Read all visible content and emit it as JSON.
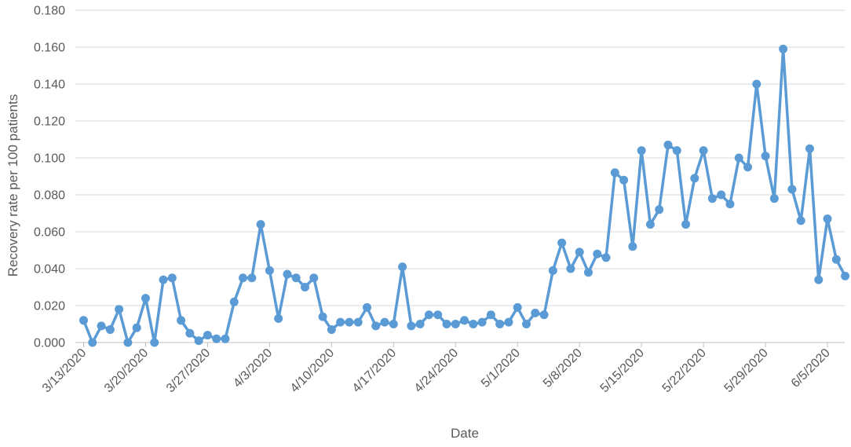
{
  "chart_data": {
    "type": "line",
    "title": "",
    "xlabel": "Date",
    "ylabel": "Recovery rate per 100 patients",
    "ylim": [
      0,
      0.18
    ],
    "y_ticks": [
      "0.000",
      "0.020",
      "0.040",
      "0.060",
      "0.080",
      "0.100",
      "0.120",
      "0.140",
      "0.160",
      "0.180"
    ],
    "x_ticks": [
      "3/13/2020",
      "3/20/2020",
      "3/27/2020",
      "4/3/2020",
      "4/10/2020",
      "4/17/2020",
      "4/24/2020",
      "5/1/2020",
      "5/8/2020",
      "5/15/2020",
      "5/22/2020",
      "5/29/2020",
      "6/5/2020"
    ],
    "grid": true,
    "legend": "none",
    "line_color": "#5B9BD5",
    "series": [
      {
        "x": [
          "3/13/2020",
          "3/14/2020",
          "3/15/2020",
          "3/16/2020",
          "3/17/2020",
          "3/18/2020",
          "3/19/2020",
          "3/20/2020",
          "3/21/2020",
          "3/22/2020",
          "3/23/2020",
          "3/24/2020",
          "3/25/2020",
          "3/26/2020",
          "3/27/2020",
          "3/28/2020",
          "3/29/2020",
          "3/30/2020",
          "3/31/2020",
          "4/1/2020",
          "4/2/2020",
          "4/3/2020",
          "4/4/2020",
          "4/5/2020",
          "4/6/2020",
          "4/7/2020",
          "4/8/2020",
          "4/9/2020",
          "4/10/2020",
          "4/11/2020",
          "4/12/2020",
          "4/13/2020",
          "4/14/2020",
          "4/15/2020",
          "4/16/2020",
          "4/17/2020",
          "4/18/2020",
          "4/19/2020",
          "4/20/2020",
          "4/21/2020",
          "4/22/2020",
          "4/23/2020",
          "4/24/2020",
          "4/25/2020",
          "4/26/2020",
          "4/27/2020",
          "4/28/2020",
          "4/29/2020",
          "4/30/2020",
          "5/1/2020",
          "5/2/2020",
          "5/3/2020",
          "5/4/2020",
          "5/5/2020",
          "5/6/2020",
          "5/7/2020",
          "5/8/2020",
          "5/9/2020",
          "5/10/2020",
          "5/11/2020",
          "5/12/2020",
          "5/13/2020",
          "5/14/2020",
          "5/15/2020",
          "5/16/2020",
          "5/17/2020",
          "5/18/2020",
          "5/19/2020",
          "5/20/2020",
          "5/21/2020",
          "5/22/2020",
          "5/23/2020",
          "5/24/2020",
          "5/25/2020",
          "5/26/2020",
          "5/27/2020",
          "5/28/2020",
          "5/29/2020",
          "5/30/2020",
          "5/31/2020",
          "6/1/2020",
          "6/2/2020",
          "6/3/2020",
          "6/4/2020",
          "6/5/2020",
          "6/6/2020",
          "6/7/2020"
        ],
        "values": [
          0.012,
          0.0,
          0.009,
          0.007,
          0.018,
          0.0,
          0.008,
          0.024,
          0.0,
          0.034,
          0.035,
          0.012,
          0.005,
          0.001,
          0.004,
          0.002,
          0.002,
          0.022,
          0.035,
          0.035,
          0.064,
          0.039,
          0.013,
          0.037,
          0.035,
          0.03,
          0.035,
          0.014,
          0.007,
          0.011,
          0.011,
          0.011,
          0.019,
          0.009,
          0.011,
          0.01,
          0.041,
          0.009,
          0.01,
          0.015,
          0.015,
          0.01,
          0.01,
          0.012,
          0.01,
          0.011,
          0.015,
          0.01,
          0.011,
          0.019,
          0.01,
          0.016,
          0.015,
          0.039,
          0.054,
          0.04,
          0.049,
          0.038,
          0.048,
          0.046,
          0.092,
          0.088,
          0.052,
          0.104,
          0.064,
          0.072,
          0.107,
          0.104,
          0.064,
          0.089,
          0.104,
          0.078,
          0.08,
          0.075,
          0.1,
          0.095,
          0.14,
          0.101,
          0.078,
          0.159,
          0.083,
          0.066,
          0.105,
          0.034,
          0.067,
          0.045,
          0.036
        ]
      }
    ]
  }
}
